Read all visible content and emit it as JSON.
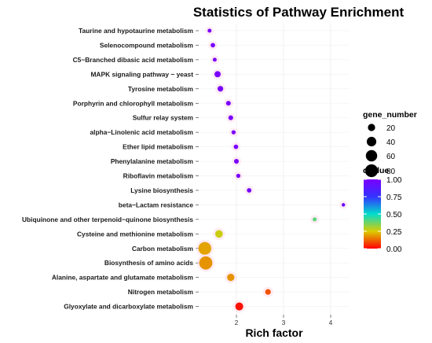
{
  "chart_data": {
    "type": "scatter",
    "title": "Statistics of Pathway Enrichment",
    "xlabel": "Rich factor",
    "ylabel": "",
    "xlim": [
      1.2,
      4.4
    ],
    "xticks": [
      2,
      3,
      4
    ],
    "grid": true,
    "legend_placement": "right",
    "size_legend": {
      "title": "gene_number",
      "values": [
        20,
        40,
        60,
        80
      ]
    },
    "color_legend": {
      "title": "qvalue",
      "ticks": [
        "0.00",
        "0.25",
        "0.50",
        "0.75",
        "1.00"
      ],
      "range": [
        0,
        1
      ],
      "colors": [
        "#ff0000",
        "#dccc00",
        "#00ddcc",
        "#3333ff",
        "#7a00ff"
      ]
    },
    "points": [
      {
        "pathway": "Taurine and hypotaurine metabolism",
        "rich_factor": 1.43,
        "gene_number": 3,
        "qvalue": 1.0
      },
      {
        "pathway": "Selenocompound metabolism",
        "rich_factor": 1.5,
        "gene_number": 5,
        "qvalue": 1.0
      },
      {
        "pathway": "C5−Branched dibasic acid metabolism",
        "rich_factor": 1.54,
        "gene_number": 3,
        "qvalue": 1.0
      },
      {
        "pathway": "MAPK signaling pathway − yeast",
        "rich_factor": 1.6,
        "gene_number": 13,
        "qvalue": 1.0
      },
      {
        "pathway": "Tyrosine metabolism",
        "rich_factor": 1.66,
        "gene_number": 10,
        "qvalue": 1.0
      },
      {
        "pathway": "Porphyrin and chlorophyll metabolism",
        "rich_factor": 1.83,
        "gene_number": 6,
        "qvalue": 1.0
      },
      {
        "pathway": "Sulfur relay system",
        "rich_factor": 1.88,
        "gene_number": 6,
        "qvalue": 1.0
      },
      {
        "pathway": "alpha−Linolenic acid metabolism",
        "rich_factor": 1.94,
        "gene_number": 4,
        "qvalue": 1.0
      },
      {
        "pathway": "Ether lipid metabolism",
        "rich_factor": 1.99,
        "gene_number": 5,
        "qvalue": 1.0
      },
      {
        "pathway": "Phenylalanine metabolism",
        "rich_factor": 2.0,
        "gene_number": 6,
        "qvalue": 1.0
      },
      {
        "pathway": "Riboflavin metabolism",
        "rich_factor": 2.04,
        "gene_number": 4,
        "qvalue": 1.0
      },
      {
        "pathway": "Lysine biosynthesis",
        "rich_factor": 2.27,
        "gene_number": 5,
        "qvalue": 0.98
      },
      {
        "pathway": "beta−Lactam resistance",
        "rich_factor": 4.27,
        "gene_number": 2,
        "qvalue": 0.95
      },
      {
        "pathway": "Ubiquinone and other terpenoid−quinone biosynthesis",
        "rich_factor": 3.66,
        "gene_number": 3,
        "qvalue": 0.4
      },
      {
        "pathway": "Cysteine and methionine metabolism",
        "rich_factor": 1.63,
        "gene_number": 22,
        "qvalue": 0.27
      },
      {
        "pathway": "Carbon metabolism",
        "rich_factor": 1.33,
        "gene_number": 80,
        "qvalue": 0.2
      },
      {
        "pathway": "Biosynthesis of amino acids",
        "rich_factor": 1.35,
        "gene_number": 85,
        "qvalue": 0.18
      },
      {
        "pathway": "Alanine, aspartate and glutamate metabolism",
        "rich_factor": 1.88,
        "gene_number": 20,
        "qvalue": 0.18
      },
      {
        "pathway": "Nitrogen metabolism",
        "rich_factor": 2.67,
        "gene_number": 10,
        "qvalue": 0.1
      },
      {
        "pathway": "Glyoxylate and dicarboxylate metabolism",
        "rich_factor": 2.06,
        "gene_number": 25,
        "qvalue": 0.02
      }
    ]
  }
}
